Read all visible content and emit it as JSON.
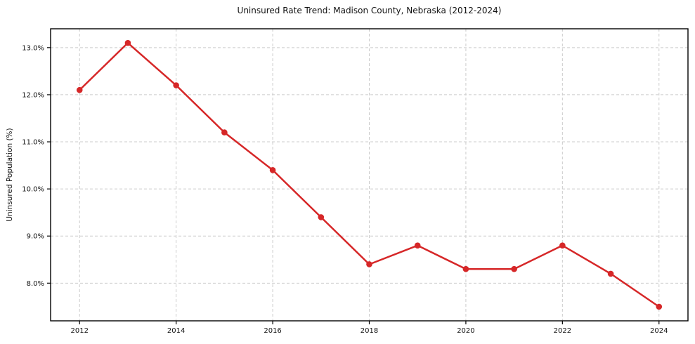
{
  "chart_data": {
    "type": "line",
    "title": "Uninsured Rate Trend: Madison County, Nebraska (2012-2024)",
    "xlabel": "",
    "ylabel": "Uninsured Population (%)",
    "x": [
      2012,
      2013,
      2014,
      2015,
      2016,
      2017,
      2018,
      2019,
      2020,
      2021,
      2022,
      2023,
      2024
    ],
    "series": [
      {
        "name": "Uninsured Rate",
        "values": [
          12.1,
          13.1,
          12.2,
          11.2,
          10.4,
          9.4,
          8.4,
          8.8,
          8.3,
          8.3,
          8.8,
          8.2,
          7.5
        ],
        "color": "#d62728"
      }
    ],
    "xlim": [
      2011.4,
      2024.6
    ],
    "ylim": [
      7.2,
      13.4
    ],
    "xticks": [
      2012,
      2014,
      2016,
      2018,
      2020,
      2022,
      2024
    ],
    "xtick_labels": [
      "2012",
      "2014",
      "2016",
      "2018",
      "2020",
      "2022",
      "2024"
    ],
    "yticks": [
      8,
      9,
      10,
      11,
      12,
      13
    ],
    "ytick_labels": [
      "8.0%",
      "9.0%",
      "10.0%",
      "11.0%",
      "12.0%",
      "13.0%"
    ],
    "grid": true,
    "grid_color": "#cccccc",
    "grid_dash": "4 3",
    "frame_color": "#000000",
    "tick_color": "#000000",
    "text_color": "#111111",
    "line_width": 2.5,
    "marker_radius": 4.3,
    "legend_position": "none"
  }
}
